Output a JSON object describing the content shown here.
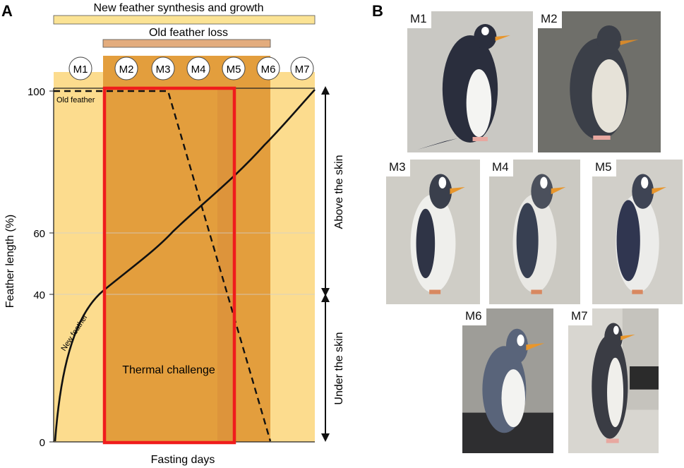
{
  "panel_a": {
    "letter": "A",
    "bars": {
      "synthesis": "New feather synthesis and growth",
      "loss": "Old feather loss"
    },
    "stages": [
      "M1",
      "M2",
      "M3",
      "M4",
      "M5",
      "M6",
      "M7"
    ],
    "y_axis": {
      "label": "Feather length (%)",
      "ticks": [
        "100",
        "60",
        "40",
        "0"
      ]
    },
    "x_axis": {
      "label": "Fasting days"
    },
    "labels": {
      "old_feather": "Old feather",
      "new_feather": "New feather",
      "thermal": "Thermal challenge",
      "above": "Above the skin",
      "under": "Under the skin"
    },
    "colors": {
      "synthesis_bar": "#fbe394",
      "loss_bar": "#e3ac7d",
      "light_region": "#fcdc8e",
      "dark_region": "#e39e3d",
      "thermal_box": "#f01c1c"
    }
  },
  "panel_b": {
    "letter": "B",
    "photos": [
      {
        "label": "M1"
      },
      {
        "label": "M2"
      },
      {
        "label": "M3"
      },
      {
        "label": "M4"
      },
      {
        "label": "M5"
      },
      {
        "label": "M6"
      },
      {
        "label": "M7"
      }
    ]
  }
}
